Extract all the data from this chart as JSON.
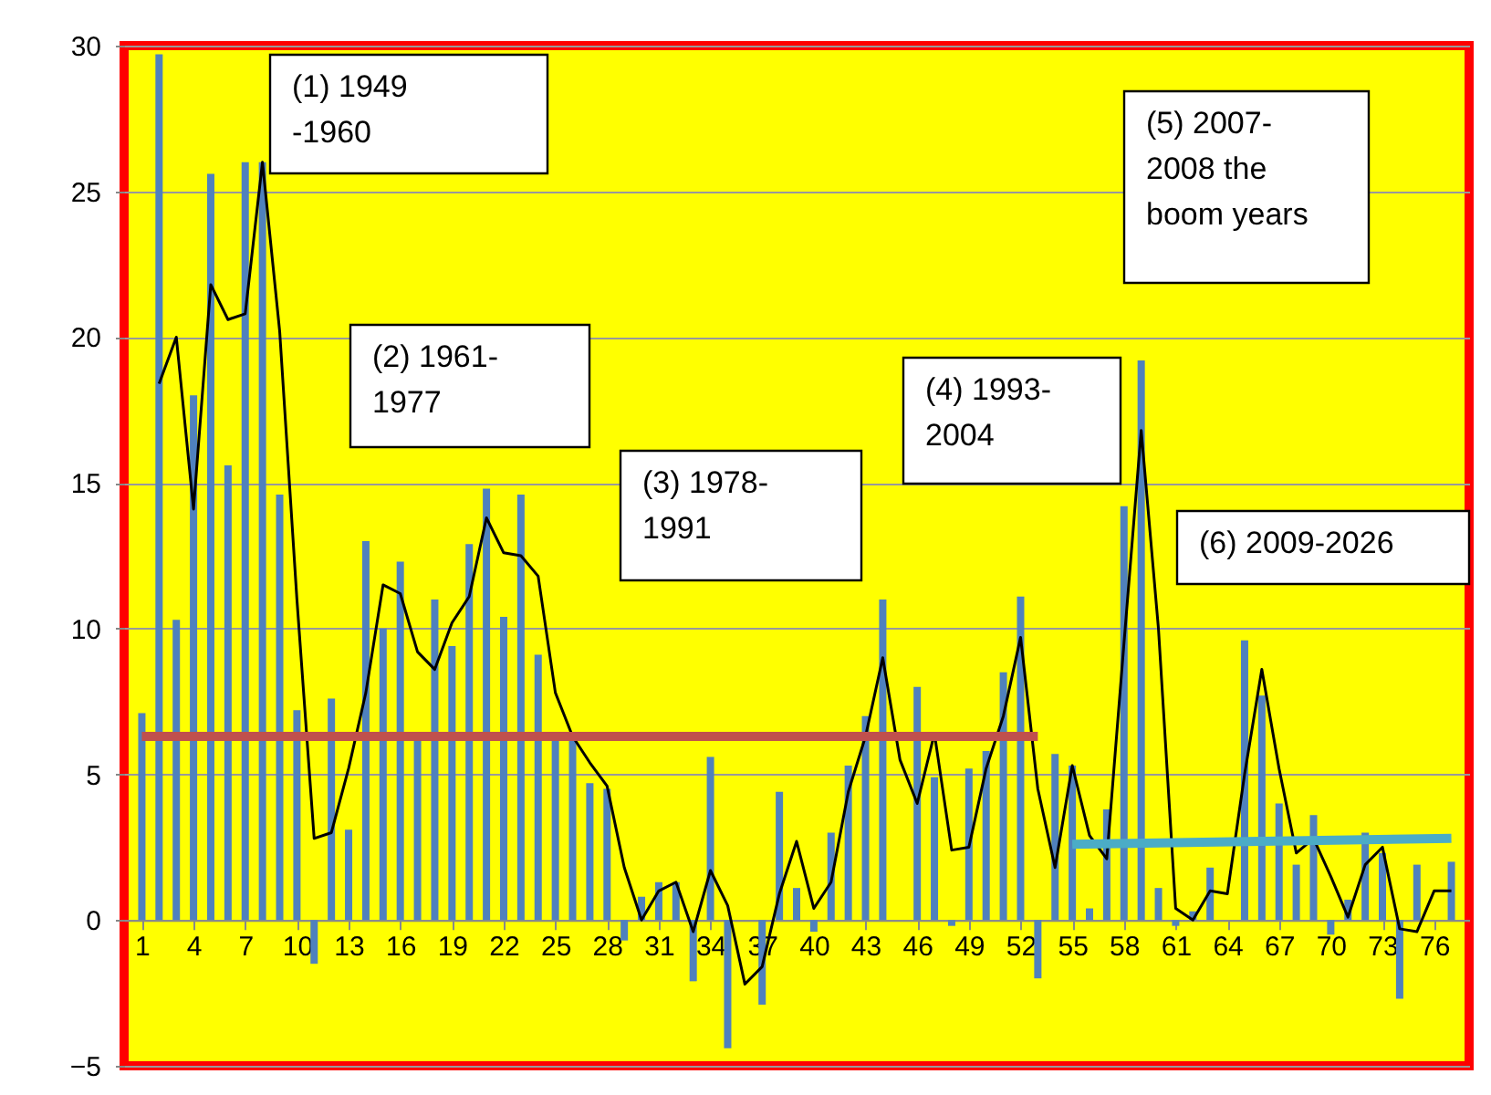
{
  "chart_data": {
    "type": "bar",
    "x": [
      1,
      2,
      3,
      4,
      5,
      6,
      7,
      8,
      9,
      10,
      11,
      12,
      13,
      14,
      15,
      16,
      17,
      18,
      19,
      20,
      21,
      22,
      23,
      24,
      25,
      26,
      27,
      28,
      29,
      30,
      31,
      32,
      33,
      34,
      35,
      36,
      37,
      38,
      39,
      40,
      41,
      42,
      43,
      44,
      45,
      46,
      47,
      48,
      49,
      50,
      51,
      52,
      53,
      54,
      55,
      56,
      57,
      58,
      59,
      60,
      61,
      62,
      63,
      64,
      65,
      66,
      67,
      68,
      69,
      70,
      71,
      72,
      73,
      74,
      75,
      76,
      77
    ],
    "series": [
      {
        "color": "#4f81bd",
        "values": [
          7.1,
          29.7,
          10.3,
          18.0,
          25.6,
          15.6,
          26.0,
          26.0,
          14.6,
          7.2,
          -1.5,
          7.6,
          3.1,
          13.0,
          10.0,
          12.3,
          6.3,
          11.0,
          9.4,
          12.9,
          14.8,
          10.4,
          14.6,
          9.1,
          6.3,
          6.3,
          4.7,
          4.5,
          -0.7,
          0.8,
          1.3,
          1.3,
          -2.1,
          5.6,
          -4.4,
          null,
          -2.9,
          4.4,
          1.1,
          -0.4,
          3.0,
          5.3,
          7.0,
          11.0,
          0.0,
          8.0,
          4.9,
          -0.2,
          5.2,
          5.8,
          8.5,
          11.1,
          -2.0,
          5.7,
          5.3,
          0.4,
          3.8,
          14.2,
          19.2,
          1.1,
          -0.2,
          0.3,
          1.8,
          0.0,
          9.6,
          7.7,
          4.0,
          1.9,
          3.6,
          -0.5,
          0.7,
          3.0,
          2.3,
          -2.7,
          1.9,
          0.0,
          2.0
        ]
      },
      {
        "type": "line",
        "color": "#000000",
        "x": [
          2,
          3,
          4,
          5,
          6,
          7,
          8,
          9,
          10,
          11,
          12,
          13,
          14,
          15,
          16,
          17,
          18,
          19,
          20,
          21,
          22,
          23,
          24,
          25,
          26,
          27,
          28,
          29,
          30,
          31,
          32,
          33,
          34,
          35,
          36,
          37,
          38,
          39,
          40,
          41,
          42,
          43,
          44,
          45,
          46,
          47,
          48,
          49,
          50,
          51,
          52,
          53,
          54,
          55,
          56,
          57,
          58,
          59,
          60,
          61,
          62,
          63,
          64,
          65,
          66,
          67,
          68,
          69,
          70,
          71,
          72,
          73,
          74,
          75,
          76,
          77
        ],
        "values": [
          18.4,
          20.0,
          14.1,
          21.8,
          20.6,
          20.8,
          26.0,
          20.2,
          11.0,
          2.8,
          3.0,
          5.2,
          7.8,
          11.5,
          11.2,
          9.2,
          8.6,
          10.2,
          11.1,
          13.8,
          12.6,
          12.5,
          11.8,
          7.8,
          6.3,
          5.4,
          4.6,
          1.8,
          0.0,
          1.0,
          1.3,
          -0.4,
          1.7,
          0.5,
          -2.2,
          -1.6,
          0.9,
          2.7,
          0.4,
          1.3,
          4.4,
          6.3,
          9.0,
          5.5,
          4.0,
          6.4,
          2.4,
          2.5,
          5.2,
          7.0,
          9.7,
          4.5,
          1.8,
          5.3,
          2.9,
          2.1,
          9.5,
          16.8,
          10.0,
          0.4,
          0.0,
          1.0,
          0.9,
          5.0,
          8.6,
          5.2,
          2.3,
          2.8,
          1.5,
          0.1,
          1.9,
          2.5,
          -0.3,
          -0.4,
          1.0,
          1.0
        ]
      },
      {
        "type": "line",
        "color": "#c0504d",
        "x": [
          1,
          53
        ],
        "values": [
          6.3,
          6.3
        ]
      },
      {
        "type": "line",
        "color": "#4bacc6",
        "x": [
          55,
          77
        ],
        "values": [
          2.6,
          2.8
        ]
      }
    ],
    "xlim": [
      0.5,
      77.5
    ],
    "xticks": [
      1,
      4,
      7,
      10,
      13,
      16,
      19,
      22,
      25,
      28,
      31,
      34,
      37,
      40,
      43,
      46,
      49,
      52,
      55,
      58,
      61,
      64,
      67,
      70,
      73,
      76
    ],
    "ylim": [
      -5,
      30
    ],
    "yticks": [
      -5,
      0,
      5,
      10,
      15,
      20,
      25,
      30
    ],
    "grid": "y",
    "annotations": [
      "(1) 1949 -1960",
      "(2) 1961- 1977",
      "(3) 1978- 1991",
      "(4) 1993- 2004",
      "(5) 2007- 2008 the boom years",
      "(6) 2009-2026"
    ]
  }
}
